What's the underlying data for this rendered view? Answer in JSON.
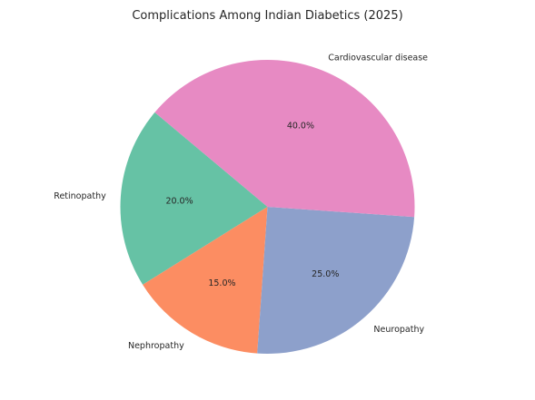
{
  "chart_data": {
    "type": "pie",
    "title": "Complications Among Indian Diabetics (2025)",
    "slices": [
      {
        "label": "Retinopathy",
        "value": 20.0,
        "pct_label": "20.0%",
        "color": "#66c2a5"
      },
      {
        "label": "Nephropathy",
        "value": 15.0,
        "pct_label": "15.0%",
        "color": "#fc8d62"
      },
      {
        "label": "Neuropathy",
        "value": 25.0,
        "pct_label": "25.0%",
        "color": "#8da0cb"
      },
      {
        "label": "Cardiovascular disease",
        "value": 40.0,
        "pct_label": "40.0%",
        "color": "#e78ac3"
      }
    ],
    "start_angle_deg": 140,
    "direction": "counterclockwise"
  }
}
